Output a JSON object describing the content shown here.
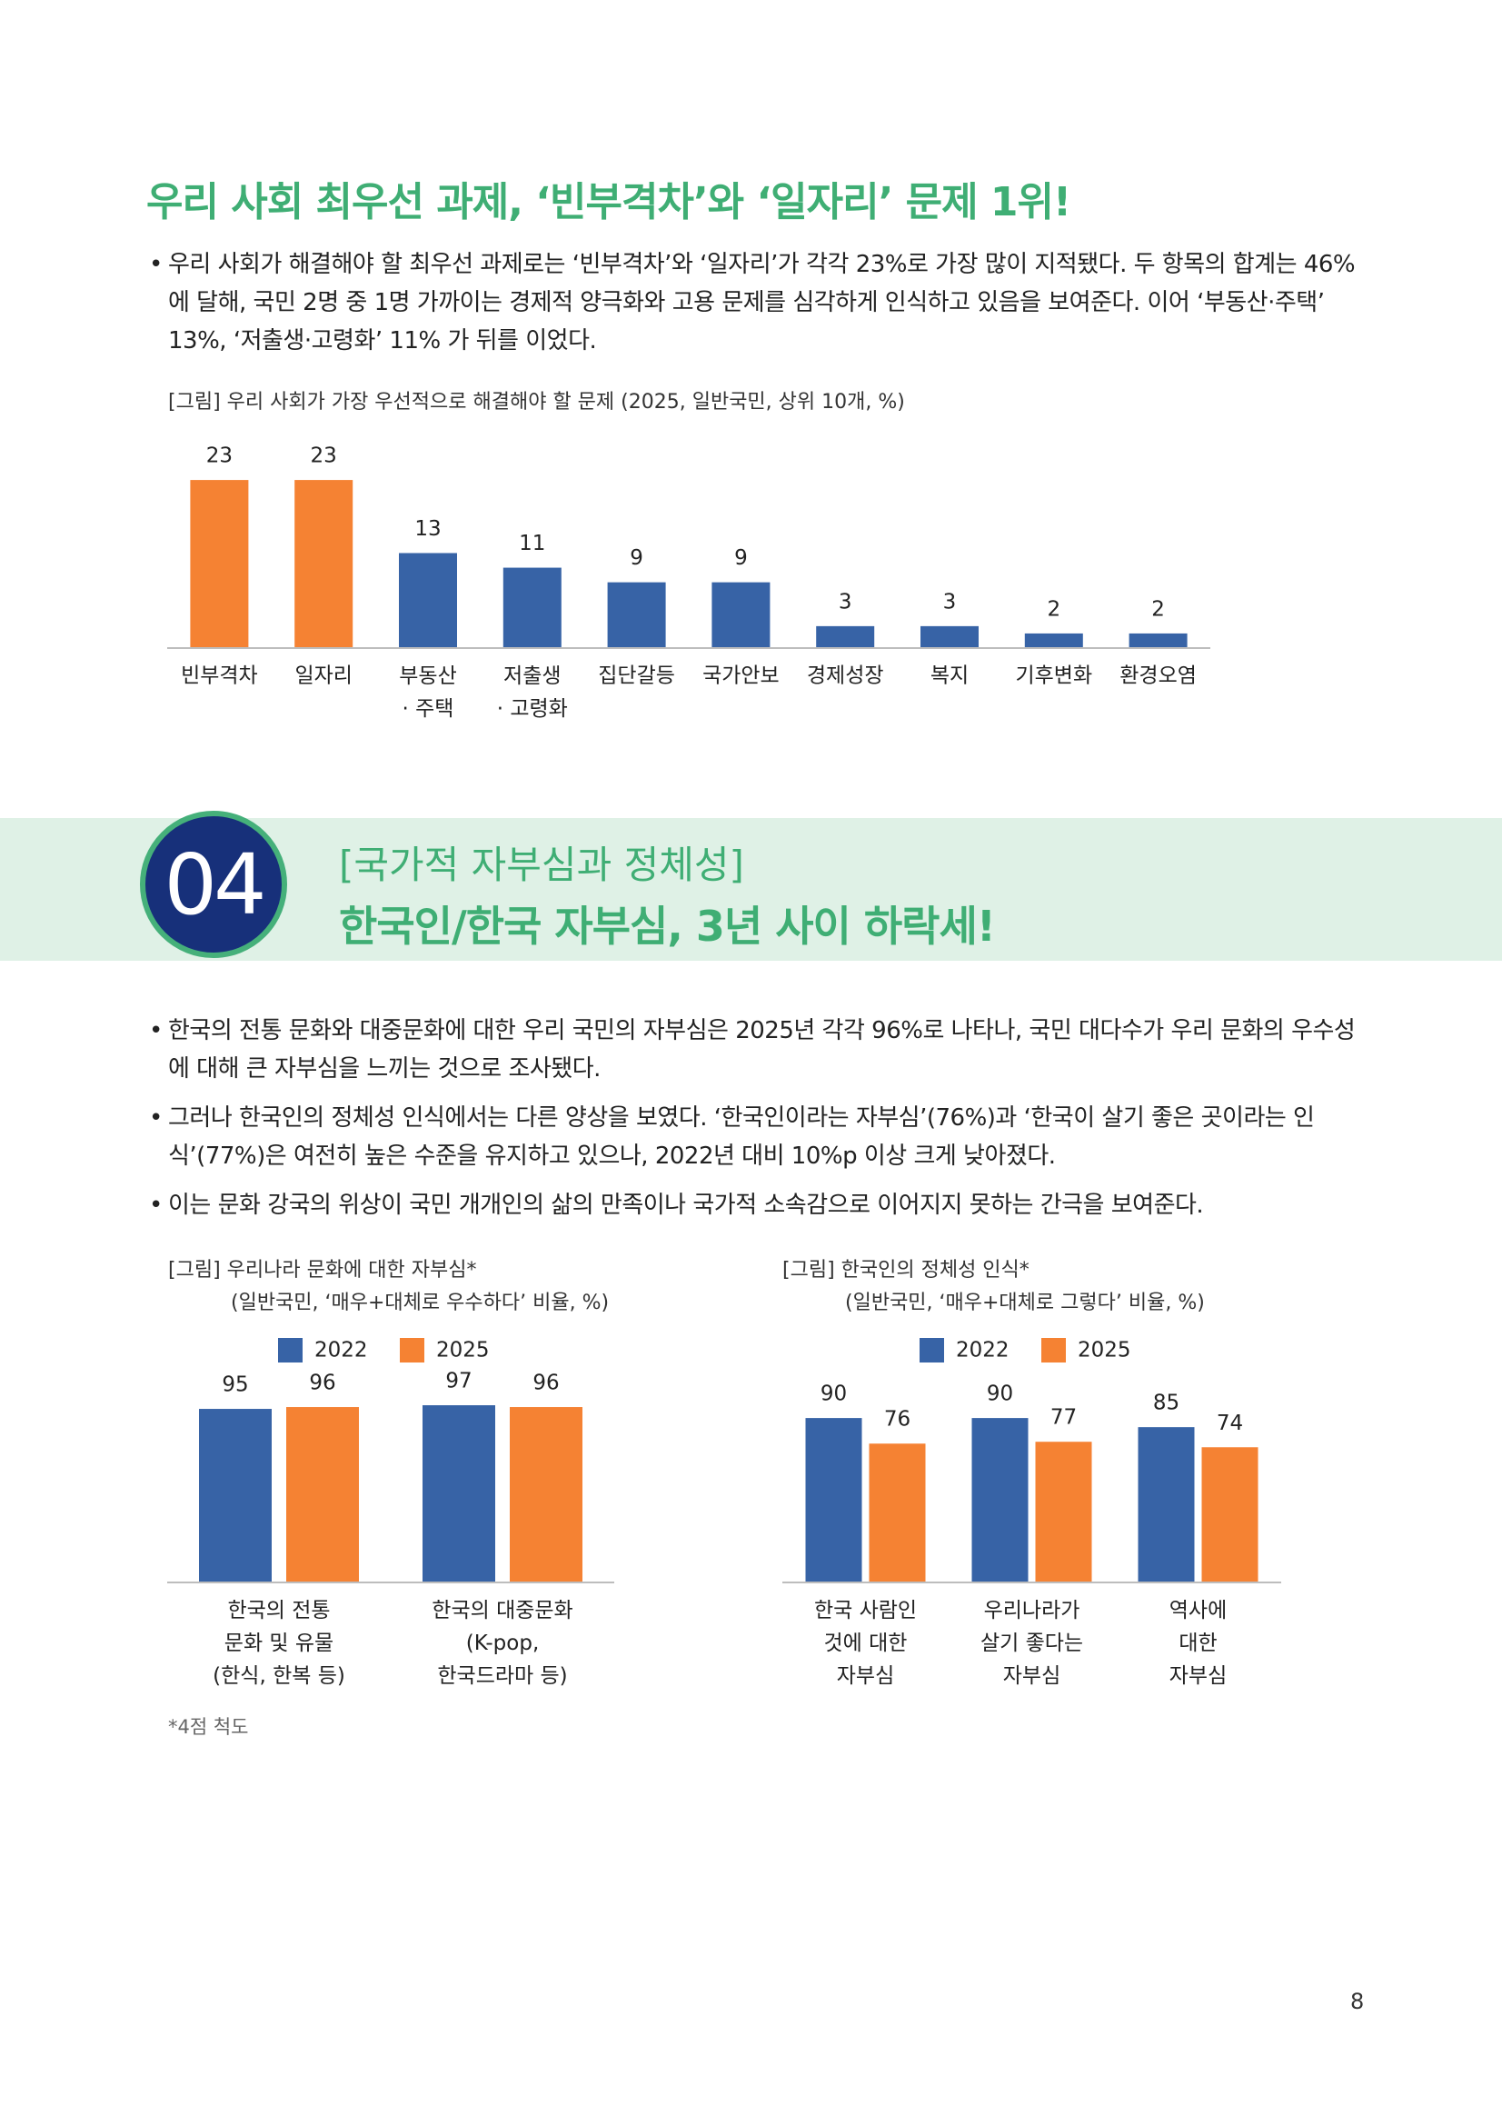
{
  "section1": {
    "title": "우리 사회 최우선 과제, ‘빈부격차’와 ‘일자리’ 문제 1위!",
    "bullets": [
      "우리 사회가 해결해야 할 최우선 과제로는 ‘빈부격차’와 ‘일자리’가 각각 23%로 가장 많이 지적됐다. 두 항목의 합계는 46%에 달해, 국민 2명 중 1명 가까이는 경제적 양극화와 고용 문제를 심각하게 인식하고 있음을 보여준다. 이어 ‘부동산·주택’ 13%, ‘저출생·고령화’ 11% 가 뒤를 이었다."
    ]
  },
  "section2": {
    "number": "04",
    "subtitle": "[국가적 자부심과 정체성]",
    "title": "한국인/한국 자부심, 3년 사이 하락세!",
    "bullets": [
      "한국의 전통 문화와 대중문화에 대한 우리 국민의 자부심은 2025년 각각 96%로 나타나, 국민 대다수가 우리 문화의 우수성에 대해 큰 자부심을 느끼는 것으로 조사됐다.",
      "그러나 한국인의 정체성 인식에서는 다른 양상을 보였다. ‘한국인이라는 자부심’(76%)과 ‘한국이 살기 좋은 곳이라는 인식’(77%)은 여전히 높은 수준을 유지하고 있으나, 2022년 대비 10%p 이상 크게 낮아졌다.",
      "이는 문화 강국의 위상이 국민 개개인의 삶의 만족이나 국가적 소속감으로 이어지지 못하는 간극을 보여준다."
    ]
  },
  "chart_data": [
    {
      "type": "bar",
      "title": "[그림] 우리 사회가 가장 우선적으로 해결해야 할 문제 (2025, 일반국민, 상위 10개, %)",
      "categories": [
        "빈부격차",
        "일자리",
        "부동산\n· 주택",
        "저출생\n· 고령화",
        "집단갈등",
        "국가안보",
        "경제성장",
        "복지",
        "기후변화",
        "환경오염"
      ],
      "values": [
        23,
        23,
        13,
        11,
        9,
        9,
        3,
        3,
        2,
        2
      ],
      "colors": [
        "#f58233",
        "#f58233",
        "#3763a6",
        "#3763a6",
        "#3763a6",
        "#3763a6",
        "#3763a6",
        "#3763a6",
        "#3763a6",
        "#3763a6"
      ],
      "ylim": [
        0,
        25
      ]
    },
    {
      "type": "bar",
      "title": "[그림] 우리나라 문화에 대한 자부심*",
      "subtitle": "(일반국민, ‘매우+대체로 우수하다’ 비율, %)",
      "categories": [
        "한국의 전통\n문화 및 유물\n(한식, 한복 등)",
        "한국의 대중문화\n(K-pop,\n한국드라마 등)"
      ],
      "series": [
        {
          "name": "2022",
          "color": "#3763a6",
          "values": [
            95,
            97
          ]
        },
        {
          "name": "2025",
          "color": "#f58233",
          "values": [
            96,
            96
          ]
        }
      ],
      "ylim": [
        0,
        100
      ]
    },
    {
      "type": "bar",
      "title": "[그림] 한국인의 정체성 인식*",
      "subtitle": "(일반국민, ‘매우+대체로 그렇다’ 비율, %)",
      "categories": [
        "한국 사람인\n것에 대한\n자부심",
        "우리나라가\n살기 좋다는\n자부심",
        "역사에\n대한\n자부심"
      ],
      "series": [
        {
          "name": "2022",
          "color": "#3763a6",
          "values": [
            90,
            90,
            85
          ]
        },
        {
          "name": "2025",
          "color": "#f58233",
          "values": [
            76,
            77,
            74
          ]
        }
      ],
      "ylim": [
        0,
        100
      ]
    }
  ],
  "footnote": "*4점 척도",
  "page_number": "8"
}
